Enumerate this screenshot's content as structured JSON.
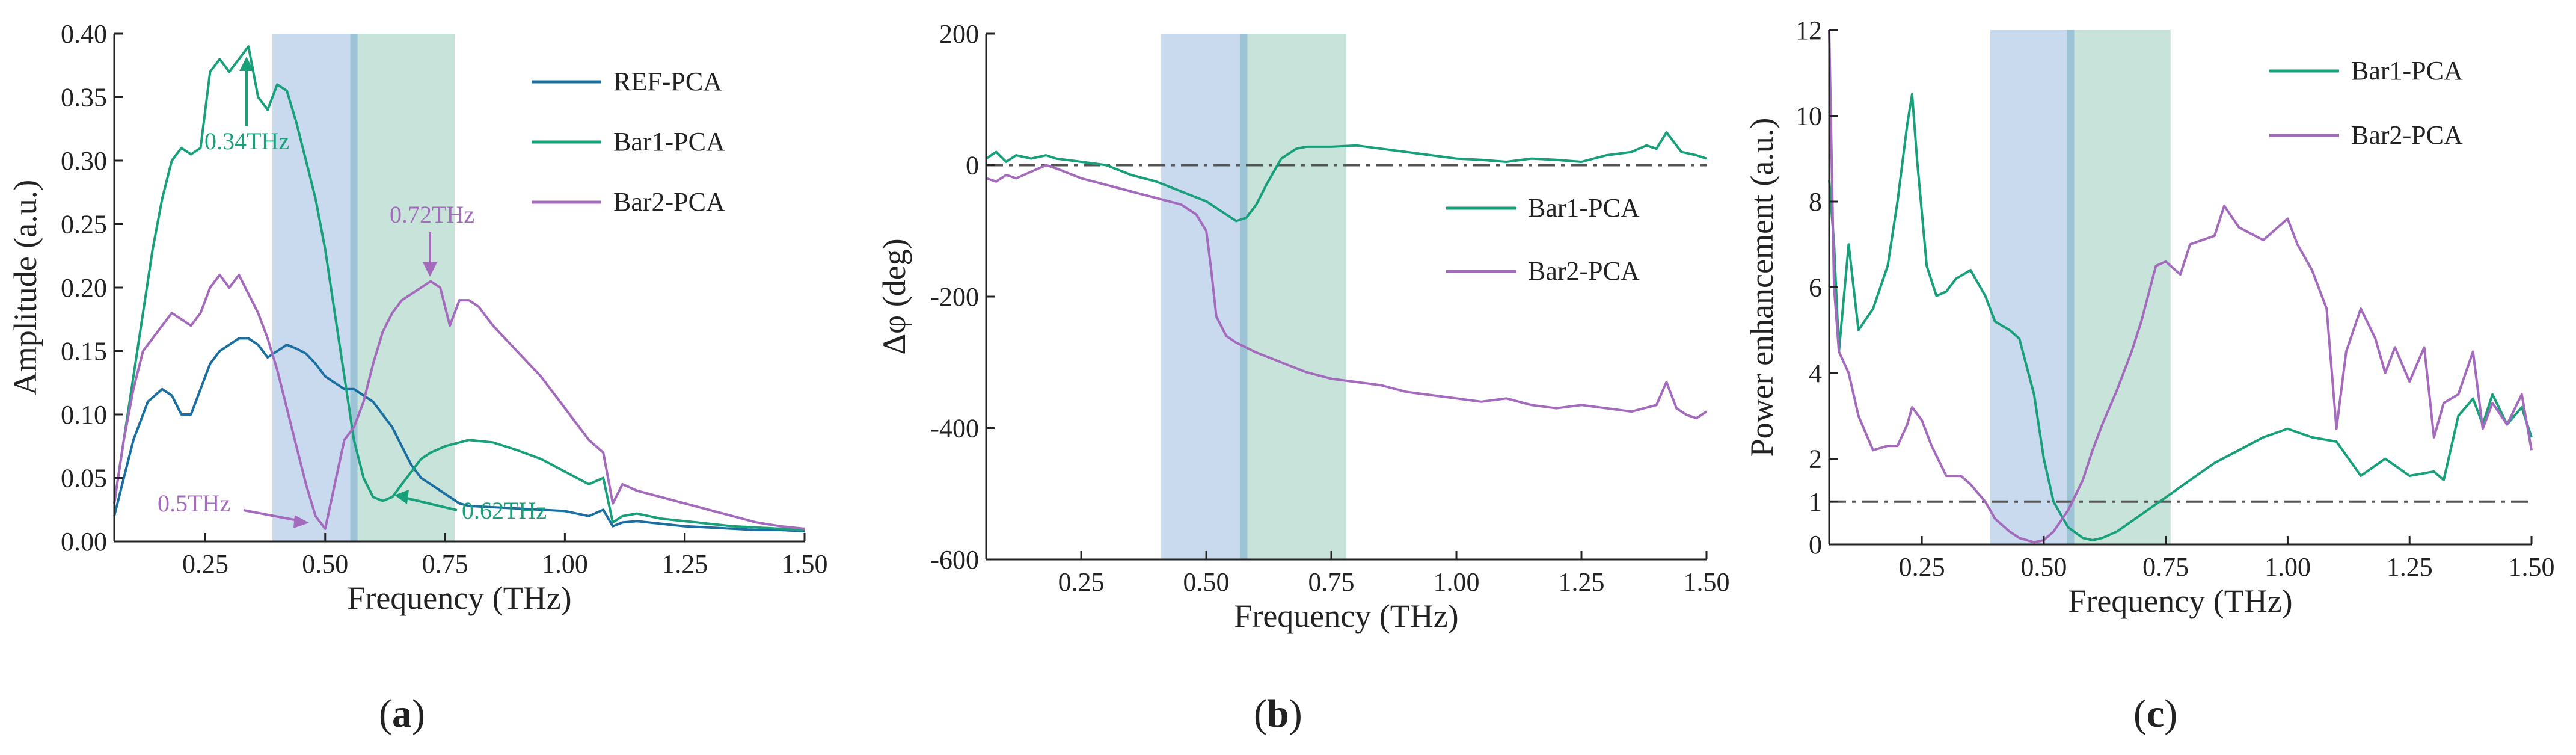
{
  "colors": {
    "ref": "#1a6fa0",
    "bar1": "#17a07a",
    "bar2": "#a46bbd",
    "blue_band": "#c9d9ee",
    "green_band": "#c8e3da",
    "separator": "#9cc4d6",
    "refline": "#555555"
  },
  "chart_data": [
    {
      "id": "a",
      "type": "line",
      "panel_label": "a",
      "xlabel": "Frequency (THz)",
      "ylabel": "Amplitude (a.u.)",
      "xlim": [
        0.06,
        1.5
      ],
      "ylim": [
        0,
        0.4
      ],
      "xticks": [
        0.25,
        0.5,
        0.75,
        1.0,
        1.25,
        1.5
      ],
      "xtick_labels": [
        "0.25",
        "0.50",
        "0.75",
        "1.00",
        "1.25",
        "1.50"
      ],
      "yticks": [
        0,
        0.05,
        0.1,
        0.15,
        0.2,
        0.25,
        0.3,
        0.35,
        0.4
      ],
      "ytick_labels": [
        "0.00",
        "0.05",
        "0.10",
        "0.15",
        "0.20",
        "0.25",
        "0.30",
        "0.35",
        "0.40"
      ],
      "bands": [
        {
          "from": 0.39,
          "to": 0.555,
          "color": "blue"
        },
        {
          "from": 0.565,
          "to": 0.77,
          "color": "green"
        }
      ],
      "separator_x": 0.56,
      "series": [
        {
          "name": "REF-PCA",
          "color_key": "ref",
          "x": [
            0.06,
            0.08,
            0.1,
            0.13,
            0.16,
            0.18,
            0.2,
            0.22,
            0.24,
            0.26,
            0.28,
            0.3,
            0.32,
            0.34,
            0.36,
            0.38,
            0.4,
            0.42,
            0.44,
            0.46,
            0.48,
            0.5,
            0.52,
            0.54,
            0.56,
            0.58,
            0.6,
            0.62,
            0.64,
            0.66,
            0.68,
            0.7,
            0.72,
            0.74,
            0.76,
            0.78,
            0.8,
            0.85,
            0.9,
            0.95,
            1.0,
            1.05,
            1.08,
            1.1,
            1.12,
            1.15,
            1.2,
            1.25,
            1.3,
            1.35,
            1.4,
            1.45,
            1.5
          ],
          "y": [
            0.02,
            0.05,
            0.08,
            0.11,
            0.12,
            0.115,
            0.1,
            0.1,
            0.12,
            0.14,
            0.15,
            0.155,
            0.16,
            0.16,
            0.155,
            0.145,
            0.15,
            0.155,
            0.152,
            0.148,
            0.14,
            0.13,
            0.125,
            0.12,
            0.12,
            0.115,
            0.11,
            0.1,
            0.09,
            0.075,
            0.06,
            0.05,
            0.045,
            0.04,
            0.035,
            0.03,
            0.028,
            0.027,
            0.026,
            0.025,
            0.024,
            0.02,
            0.025,
            0.012,
            0.015,
            0.016,
            0.014,
            0.012,
            0.011,
            0.01,
            0.009,
            0.009,
            0.008
          ]
        },
        {
          "name": "Bar1-PCA",
          "color_key": "bar1",
          "x": [
            0.06,
            0.08,
            0.1,
            0.12,
            0.14,
            0.16,
            0.18,
            0.2,
            0.22,
            0.24,
            0.26,
            0.28,
            0.3,
            0.32,
            0.34,
            0.36,
            0.38,
            0.4,
            0.42,
            0.44,
            0.46,
            0.48,
            0.5,
            0.52,
            0.54,
            0.56,
            0.58,
            0.6,
            0.62,
            0.64,
            0.66,
            0.68,
            0.7,
            0.72,
            0.75,
            0.78,
            0.8,
            0.85,
            0.9,
            0.95,
            1.0,
            1.05,
            1.08,
            1.1,
            1.12,
            1.15,
            1.2,
            1.25,
            1.3,
            1.35,
            1.4,
            1.45,
            1.5
          ],
          "y": [
            0.03,
            0.08,
            0.13,
            0.18,
            0.23,
            0.27,
            0.3,
            0.31,
            0.305,
            0.31,
            0.37,
            0.38,
            0.37,
            0.38,
            0.39,
            0.35,
            0.34,
            0.36,
            0.355,
            0.33,
            0.3,
            0.27,
            0.23,
            0.18,
            0.13,
            0.08,
            0.05,
            0.035,
            0.032,
            0.035,
            0.045,
            0.055,
            0.065,
            0.07,
            0.075,
            0.078,
            0.08,
            0.078,
            0.072,
            0.065,
            0.055,
            0.045,
            0.05,
            0.015,
            0.02,
            0.022,
            0.018,
            0.016,
            0.014,
            0.012,
            0.011,
            0.01,
            0.009
          ]
        },
        {
          "name": "Bar2-PCA",
          "color_key": "bar2",
          "x": [
            0.06,
            0.08,
            0.1,
            0.12,
            0.14,
            0.16,
            0.18,
            0.2,
            0.22,
            0.24,
            0.26,
            0.28,
            0.3,
            0.32,
            0.34,
            0.36,
            0.38,
            0.4,
            0.42,
            0.44,
            0.46,
            0.48,
            0.5,
            0.52,
            0.54,
            0.56,
            0.58,
            0.6,
            0.62,
            0.64,
            0.66,
            0.68,
            0.7,
            0.72,
            0.74,
            0.76,
            0.78,
            0.8,
            0.82,
            0.85,
            0.9,
            0.95,
            1.0,
            1.05,
            1.08,
            1.1,
            1.12,
            1.15,
            1.2,
            1.25,
            1.3,
            1.35,
            1.4,
            1.45,
            1.5
          ],
          "y": [
            0.03,
            0.08,
            0.12,
            0.15,
            0.16,
            0.17,
            0.18,
            0.175,
            0.17,
            0.18,
            0.2,
            0.21,
            0.2,
            0.21,
            0.195,
            0.18,
            0.16,
            0.135,
            0.105,
            0.075,
            0.045,
            0.02,
            0.01,
            0.045,
            0.08,
            0.09,
            0.11,
            0.14,
            0.165,
            0.18,
            0.19,
            0.195,
            0.2,
            0.205,
            0.2,
            0.17,
            0.19,
            0.19,
            0.185,
            0.17,
            0.15,
            0.13,
            0.105,
            0.08,
            0.07,
            0.03,
            0.045,
            0.04,
            0.035,
            0.03,
            0.025,
            0.02,
            0.015,
            0.012,
            0.01
          ]
        }
      ],
      "annotations": [
        {
          "text": "0.34THz",
          "color_key": "bar1"
        },
        {
          "text": "0.72THz",
          "color_key": "bar2"
        },
        {
          "text": "0.5THz",
          "color_key": "bar2"
        },
        {
          "text": "0.62THz",
          "color_key": "bar1"
        }
      ],
      "reference_line": null
    },
    {
      "id": "b",
      "type": "line",
      "panel_label": "b",
      "xlabel": "Frequency (THz)",
      "ylabel": "Δφ  (deg)",
      "xlim": [
        0.06,
        1.5
      ],
      "ylim": [
        -600,
        200
      ],
      "xticks": [
        0.25,
        0.5,
        0.75,
        1.0,
        1.25,
        1.5
      ],
      "xtick_labels": [
        "0.25",
        "0.50",
        "0.75",
        "1.00",
        "1.25",
        "1.50"
      ],
      "yticks": [
        -600,
        -400,
        -200,
        0,
        200
      ],
      "ytick_labels": [
        "-600",
        "-400",
        "-200",
        "0",
        "200"
      ],
      "bands": [
        {
          "from": 0.41,
          "to": 0.57,
          "color": "blue"
        },
        {
          "from": 0.58,
          "to": 0.78,
          "color": "green"
        }
      ],
      "separator_x": 0.575,
      "series": [
        {
          "name": "Bar1-PCA",
          "color_key": "bar1",
          "x": [
            0.06,
            0.08,
            0.1,
            0.12,
            0.15,
            0.18,
            0.2,
            0.25,
            0.3,
            0.35,
            0.4,
            0.45,
            0.5,
            0.53,
            0.56,
            0.58,
            0.6,
            0.62,
            0.65,
            0.68,
            0.7,
            0.75,
            0.8,
            0.85,
            0.9,
            0.95,
            1.0,
            1.05,
            1.1,
            1.15,
            1.2,
            1.25,
            1.3,
            1.35,
            1.38,
            1.4,
            1.42,
            1.45,
            1.48,
            1.5
          ],
          "y": [
            10,
            20,
            5,
            15,
            10,
            15,
            10,
            5,
            0,
            -15,
            -25,
            -40,
            -55,
            -70,
            -85,
            -80,
            -60,
            -30,
            10,
            25,
            28,
            28,
            30,
            25,
            20,
            15,
            10,
            8,
            5,
            10,
            8,
            5,
            15,
            20,
            30,
            25,
            50,
            20,
            15,
            10
          ]
        },
        {
          "name": "Bar2-PCA",
          "color_key": "bar2",
          "x": [
            0.06,
            0.08,
            0.1,
            0.12,
            0.15,
            0.18,
            0.2,
            0.25,
            0.3,
            0.35,
            0.4,
            0.45,
            0.48,
            0.5,
            0.51,
            0.52,
            0.54,
            0.56,
            0.6,
            0.65,
            0.7,
            0.75,
            0.8,
            0.85,
            0.9,
            0.95,
            1.0,
            1.05,
            1.1,
            1.15,
            1.2,
            1.25,
            1.3,
            1.35,
            1.4,
            1.42,
            1.44,
            1.46,
            1.48,
            1.5
          ],
          "y": [
            -20,
            -25,
            -15,
            -20,
            -10,
            0,
            -5,
            -20,
            -30,
            -40,
            -50,
            -60,
            -75,
            -100,
            -160,
            -230,
            -260,
            -270,
            -285,
            -300,
            -315,
            -325,
            -330,
            -335,
            -345,
            -350,
            -355,
            -360,
            -355,
            -365,
            -370,
            -365,
            -370,
            -375,
            -365,
            -330,
            -370,
            -380,
            -385,
            -375
          ]
        }
      ],
      "annotations": [],
      "reference_line": {
        "y": 0
      }
    },
    {
      "id": "c",
      "type": "line",
      "panel_label": "c",
      "xlabel": "Frequency (THz)",
      "ylabel": "Power enhancement (a.u.)",
      "xlim": [
        0.06,
        1.5
      ],
      "ylim": [
        0,
        12
      ],
      "xticks": [
        0.25,
        0.5,
        0.75,
        1.0,
        1.25,
        1.5
      ],
      "xtick_labels": [
        "0.25",
        "0.50",
        "0.75",
        "1.00",
        "1.25",
        "1.50"
      ],
      "yticks": [
        0,
        1,
        2,
        4,
        6,
        8,
        10,
        12
      ],
      "ytick_labels": [
        "0",
        "1",
        "2",
        "4",
        "6",
        "8",
        "10",
        "12"
      ],
      "bands": [
        {
          "from": 0.39,
          "to": 0.55,
          "color": "blue"
        },
        {
          "from": 0.56,
          "to": 0.76,
          "color": "green"
        }
      ],
      "separator_x": 0.555,
      "series": [
        {
          "name": "Bar1-PCA",
          "color_key": "bar1",
          "x": [
            0.06,
            0.07,
            0.08,
            0.1,
            0.12,
            0.15,
            0.18,
            0.2,
            0.22,
            0.23,
            0.24,
            0.26,
            0.28,
            0.3,
            0.32,
            0.35,
            0.38,
            0.4,
            0.43,
            0.45,
            0.48,
            0.5,
            0.52,
            0.55,
            0.58,
            0.6,
            0.62,
            0.65,
            0.7,
            0.75,
            0.8,
            0.85,
            0.9,
            0.95,
            1.0,
            1.05,
            1.1,
            1.15,
            1.2,
            1.25,
            1.3,
            1.32,
            1.35,
            1.38,
            1.4,
            1.42,
            1.45,
            1.48,
            1.5
          ],
          "y": [
            8.5,
            7,
            4.5,
            7,
            5,
            5.5,
            6.5,
            8,
            9.8,
            10.5,
            9,
            6.5,
            5.8,
            5.9,
            6.2,
            6.4,
            5.8,
            5.2,
            5,
            4.8,
            3.5,
            2,
            1,
            0.4,
            0.15,
            0.1,
            0.15,
            0.3,
            0.7,
            1.1,
            1.5,
            1.9,
            2.2,
            2.5,
            2.7,
            2.5,
            2.4,
            1.6,
            2,
            1.6,
            1.7,
            1.5,
            3,
            3.4,
            2.8,
            3.5,
            2.8,
            3.2,
            2.5
          ]
        },
        {
          "name": "Bar2-PCA",
          "color_key": "bar2",
          "x": [
            0.06,
            0.07,
            0.08,
            0.1,
            0.12,
            0.15,
            0.18,
            0.2,
            0.22,
            0.23,
            0.25,
            0.27,
            0.3,
            0.33,
            0.35,
            0.38,
            0.4,
            0.43,
            0.45,
            0.48,
            0.5,
            0.52,
            0.55,
            0.58,
            0.6,
            0.62,
            0.65,
            0.68,
            0.7,
            0.73,
            0.75,
            0.78,
            0.8,
            0.85,
            0.87,
            0.9,
            0.95,
            1.0,
            1.02,
            1.05,
            1.08,
            1.1,
            1.12,
            1.15,
            1.18,
            1.2,
            1.22,
            1.25,
            1.28,
            1.3,
            1.32,
            1.35,
            1.38,
            1.4,
            1.42,
            1.45,
            1.48,
            1.5
          ],
          "y": [
            12,
            6,
            4.5,
            4,
            3,
            2.2,
            2.3,
            2.3,
            2.8,
            3.2,
            2.9,
            2.3,
            1.6,
            1.6,
            1.4,
            1,
            0.6,
            0.3,
            0.15,
            0.05,
            0.1,
            0.3,
            0.8,
            1.5,
            2.2,
            2.8,
            3.6,
            4.5,
            5.2,
            6.5,
            6.6,
            6.3,
            7,
            7.2,
            7.9,
            7.4,
            7.1,
            7.6,
            7,
            6.4,
            5.5,
            2.7,
            4.5,
            5.5,
            4.8,
            4,
            4.6,
            3.8,
            4.6,
            2.5,
            3.3,
            3.5,
            4.5,
            2.7,
            3.3,
            2.8,
            3.5,
            2.2
          ]
        }
      ],
      "annotations": [],
      "reference_line": {
        "y": 1
      }
    }
  ]
}
